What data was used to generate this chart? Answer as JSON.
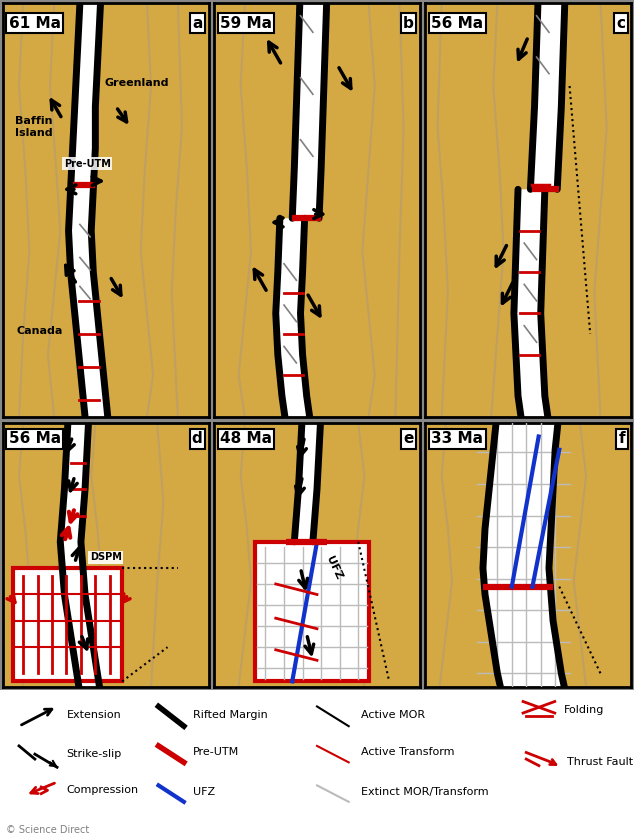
{
  "panel_labels": [
    "61 Ma",
    "59 Ma",
    "56 Ma",
    "56 Ma",
    "48 Ma",
    "33 Ma"
  ],
  "panel_sublabels": [
    "a",
    "b",
    "c",
    "d",
    "e",
    "f"
  ],
  "bg_color": "#D4A843",
  "white": "#FFFFFF",
  "black": "#000000",
  "red": "#CC0000",
  "blue": "#1133CC",
  "lgray": "#BBBBBB",
  "contour_color": "#C0A060",
  "legend_bg": "#FFFFFF",
  "fig_width": 6.34,
  "fig_height": 8.38,
  "dpi": 100
}
